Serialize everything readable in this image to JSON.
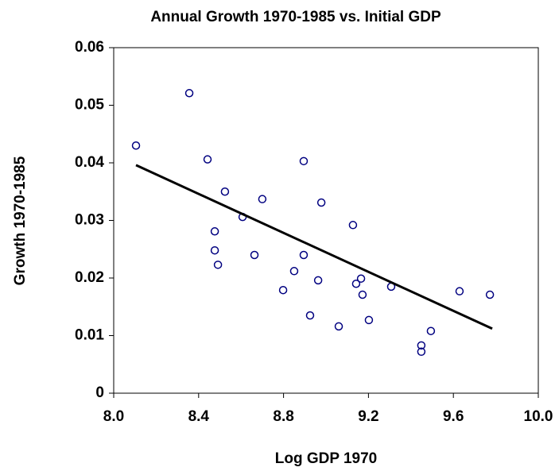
{
  "chart_data": {
    "type": "scatter",
    "title": "Annual Growth 1970-1985 vs. Initial GDP",
    "x_label": "Log GDP 1970",
    "y_label": "Growth 1970-1985",
    "series": [
      {
        "color": "#000080",
        "x": [
          8.105,
          8.356,
          8.442,
          8.524,
          8.607,
          8.476,
          8.476,
          8.491,
          8.663,
          8.7,
          8.798,
          8.85,
          8.895,
          8.895,
          8.925,
          8.963,
          8.978,
          9.06,
          9.127,
          9.142,
          9.165,
          9.172,
          9.202,
          9.307,
          9.449,
          9.449,
          9.494,
          9.629,
          9.772
        ],
        "values": [
          0.043,
          0.0521,
          0.0406,
          0.035,
          0.0306,
          0.0281,
          0.0248,
          0.0223,
          0.024,
          0.0337,
          0.0179,
          0.0212,
          0.0403,
          0.024,
          0.0135,
          0.0196,
          0.0331,
          0.0116,
          0.0292,
          0.019,
          0.0199,
          0.0171,
          0.0127,
          0.0185,
          0.0083,
          0.0072,
          0.0108,
          0.0177,
          0.0171
        ]
      }
    ],
    "trendline": {
      "color": "#000000",
      "x": [
        8.105,
        9.783
      ],
      "values": [
        0.0396,
        0.0112
      ]
    },
    "xlim": [
      8.0,
      10.0
    ],
    "xticks": [
      {
        "value": 8,
        "label": "8.0"
      },
      8.4,
      8.8,
      9.2,
      9.6,
      {
        "value": 10,
        "label": "10.0"
      }
    ],
    "ylim": [
      0,
      0.06
    ],
    "yticks": [
      0,
      0.01,
      0.02,
      0.03,
      0.04,
      0.05,
      0.06
    ],
    "grid": false
  }
}
